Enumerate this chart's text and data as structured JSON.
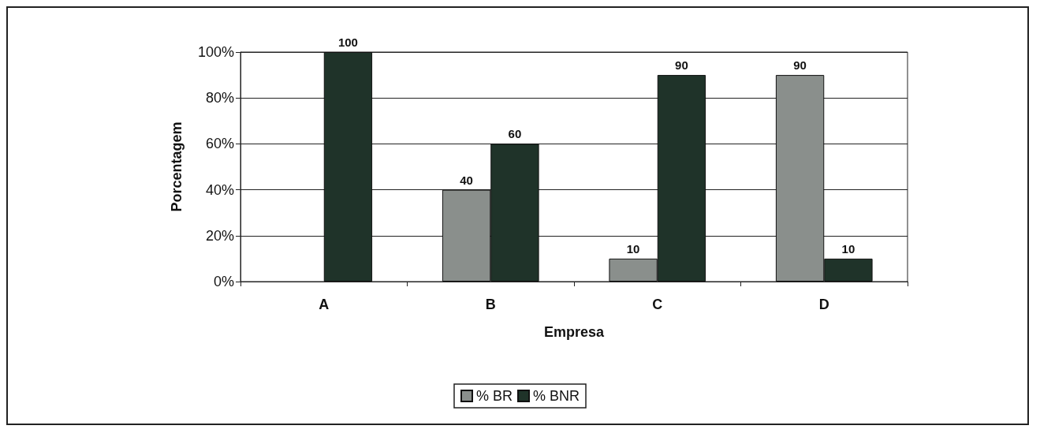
{
  "chart_data": {
    "type": "bar",
    "xlabel": "Empresa",
    "ylabel": "Porcentagem",
    "categories": [
      "A",
      "B",
      "C",
      "D"
    ],
    "series": [
      {
        "name": "% BR",
        "color": "#8a8f8c",
        "values": [
          null,
          40,
          10,
          90
        ]
      },
      {
        "name": "% BNR",
        "color": "#1f3329",
        "values": [
          100,
          60,
          90,
          10
        ]
      }
    ],
    "ylim": [
      0,
      100
    ],
    "yticks": [
      {
        "value": 0,
        "label": "0%"
      },
      {
        "value": 20,
        "label": "20%"
      },
      {
        "value": 40,
        "label": "40%"
      },
      {
        "value": 60,
        "label": "60%"
      },
      {
        "value": 80,
        "label": "80%"
      },
      {
        "value": 100,
        "label": "100%"
      }
    ],
    "grid": "y",
    "legend": "bottom",
    "data_labels": true
  }
}
